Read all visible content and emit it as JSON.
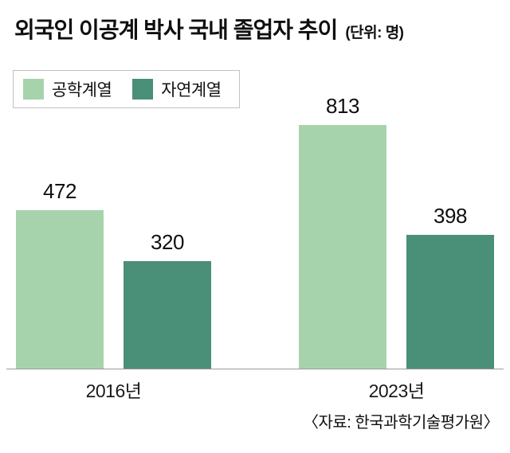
{
  "header": {
    "title": "외국인 이공계 박사 국내 졸업자 추이",
    "unit": "(단위: 명)"
  },
  "source": "〈자료: 한국과학기술평가원〉",
  "chart_data": {
    "type": "bar",
    "title": "외국인 이공계 박사 국내 졸업자 추이",
    "unit_label": "명",
    "categories": [
      "2016년",
      "2023년"
    ],
    "series": [
      {
        "name": "공학계열",
        "color": "#a7d3ac",
        "values": [
          472,
          813
        ]
      },
      {
        "name": "자연계열",
        "color": "#4a8f77",
        "values": [
          320,
          398
        ]
      }
    ],
    "ylim": [
      0,
      813
    ],
    "grid": false,
    "legend_position": "top-left",
    "value_labels": true,
    "axis_line_color": "#9a9a9a"
  }
}
